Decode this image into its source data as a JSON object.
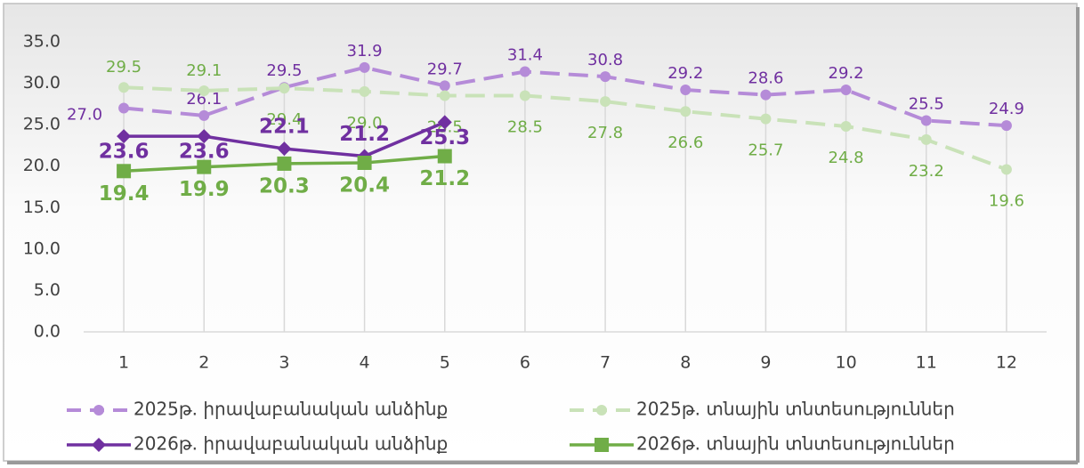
{
  "chart_data": {
    "type": "line",
    "categories": [
      1,
      2,
      3,
      4,
      5,
      6,
      7,
      8,
      9,
      10,
      11,
      12
    ],
    "ylim": [
      0,
      35
    ],
    "yticks": [
      {
        "value": 0,
        "label": "0.0"
      },
      {
        "value": 5,
        "label": "5.0"
      },
      {
        "value": 10,
        "label": "10.0"
      },
      {
        "value": 15,
        "label": "15.0"
      },
      {
        "value": 20,
        "label": "20.0"
      },
      {
        "value": 25,
        "label": "25.0"
      },
      {
        "value": 30,
        "label": "30.0"
      },
      {
        "value": 35,
        "label": "35.0"
      }
    ],
    "drop_lines": true,
    "legend": "bottom",
    "series": [
      {
        "name": "2025թ. իրավաբանական անձինք",
        "color": "#b58bd8",
        "label_color": "#7030a0",
        "dashed": true,
        "marker": "circle",
        "values": [
          27.0,
          26.1,
          29.5,
          31.9,
          29.7,
          31.4,
          30.8,
          29.2,
          28.6,
          29.2,
          25.5,
          24.9
        ],
        "value_labels": [
          "27.0",
          "26.1",
          "29.5",
          "31.9",
          "29.7",
          "31.4",
          "30.8",
          "29.2",
          "28.6",
          "29.2",
          "25.5",
          "24.9"
        ]
      },
      {
        "name": "2025թ. տնային տնտեսություններ",
        "color": "#c9e2b8",
        "label_color": "#70ad47",
        "dashed": true,
        "marker": "circle",
        "values": [
          29.5,
          29.1,
          29.4,
          29.0,
          28.5,
          28.5,
          27.8,
          26.6,
          25.7,
          24.8,
          23.2,
          19.6
        ],
        "value_labels": [
          "29.5",
          "29.1",
          "29.4",
          "29.0",
          "28.5",
          "28.5",
          "27.8",
          "26.6",
          "25.7",
          "24.8",
          "23.2",
          "19.6"
        ]
      },
      {
        "name": "2026թ. իրավաբանական անձինք",
        "color": "#7030a0",
        "label_color": "#7030a0",
        "dashed": false,
        "marker": "diamond",
        "values": [
          23.6,
          23.6,
          22.1,
          21.2,
          25.3,
          null,
          null,
          null,
          null,
          null,
          null,
          null
        ],
        "value_labels": [
          "23.6",
          "23.6",
          "22.1",
          "21.2",
          "25.3",
          null,
          null,
          null,
          null,
          null,
          null,
          null
        ]
      },
      {
        "name": "2026թ. տնային տնտեսություններ",
        "color": "#70ad47",
        "label_color": "#70ad47",
        "dashed": false,
        "marker": "square",
        "values": [
          19.4,
          19.9,
          20.3,
          20.4,
          21.2,
          null,
          null,
          null,
          null,
          null,
          null,
          null
        ],
        "value_labels": [
          "19.4",
          "19.9",
          "20.3",
          "20.4",
          "21.2",
          null,
          null,
          null,
          null,
          null,
          null,
          null
        ]
      }
    ]
  }
}
